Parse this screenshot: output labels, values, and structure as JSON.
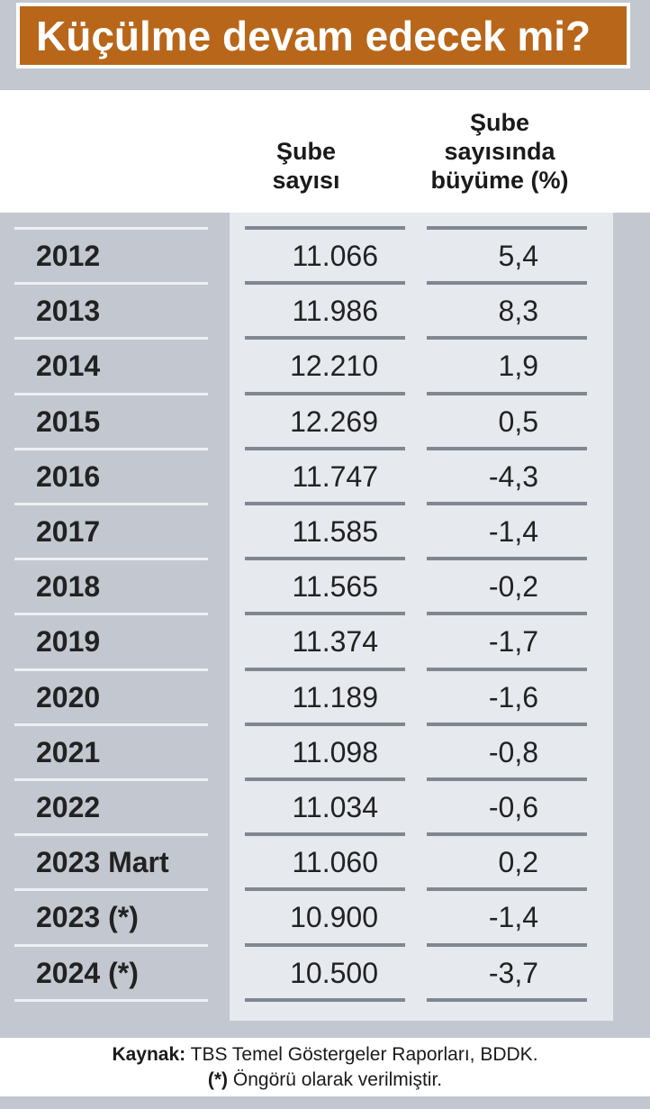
{
  "title": "Küçülme devam edecek mi?",
  "columns": {
    "sube": "Şube\nsayısı",
    "growth": "Şube\nsayısında\nbüyüme (%)"
  },
  "rows": [
    {
      "year": "2012",
      "sube": "11.066",
      "growth": "5,4"
    },
    {
      "year": "2013",
      "sube": "11.986",
      "growth": "8,3"
    },
    {
      "year": "2014",
      "sube": "12.210",
      "growth": "1,9"
    },
    {
      "year": "2015",
      "sube": "12.269",
      "growth": "0,5"
    },
    {
      "year": "2016",
      "sube": "11.747",
      "growth": "-4,3"
    },
    {
      "year": "2017",
      "sube": "11.585",
      "growth": "-1,4"
    },
    {
      "year": "2018",
      "sube": "11.565",
      "growth": "-0,2"
    },
    {
      "year": "2019",
      "sube": "11.374",
      "growth": "-1,7"
    },
    {
      "year": "2020",
      "sube": "11.189",
      "growth": "-1,6"
    },
    {
      "year": "2021",
      "sube": "11.098",
      "growth": "-0,8"
    },
    {
      "year": "2022",
      "sube": "11.034",
      "growth": "-0,6"
    },
    {
      "year": "2023 Mart",
      "sube": "11.060",
      "growth": "0,2"
    },
    {
      "year": "2023 (*)",
      "sube": "10.900",
      "growth": "-1,4"
    },
    {
      "year": "2024 (*)",
      "sube": "10.500",
      "growth": "-3,7"
    }
  ],
  "source": {
    "label": "Kaynak:",
    "text": " TBS Temel Göstergeler Raporları, BDDK."
  },
  "note": {
    "label": "(*)",
    "text": " Öngörü olarak verilmiştir."
  },
  "colors": {
    "title_bg": "#b8661a",
    "band": "#c3c8d0",
    "panel": "#e6e9ee",
    "rule": "#808791"
  },
  "chart_data": {
    "type": "table",
    "title": "Küçülme devam edecek mi?",
    "columns": [
      "",
      "Şube sayısı",
      "Şube sayısında büyüme (%)"
    ],
    "categories": [
      "2012",
      "2013",
      "2014",
      "2015",
      "2016",
      "2017",
      "2018",
      "2019",
      "2020",
      "2021",
      "2022",
      "2023 Mart",
      "2023 (*)",
      "2024 (*)"
    ],
    "series": [
      {
        "name": "Şube sayısı",
        "values": [
          11066,
          11986,
          12210,
          12269,
          11747,
          11585,
          11565,
          11374,
          11189,
          11098,
          11034,
          11060,
          10900,
          10500
        ]
      },
      {
        "name": "Şube sayısında büyüme (%)",
        "values": [
          5.4,
          8.3,
          1.9,
          0.5,
          -4.3,
          -1.4,
          -0.2,
          -1.7,
          -1.6,
          -0.8,
          -0.6,
          0.2,
          -1.4,
          -3.7
        ]
      }
    ]
  }
}
